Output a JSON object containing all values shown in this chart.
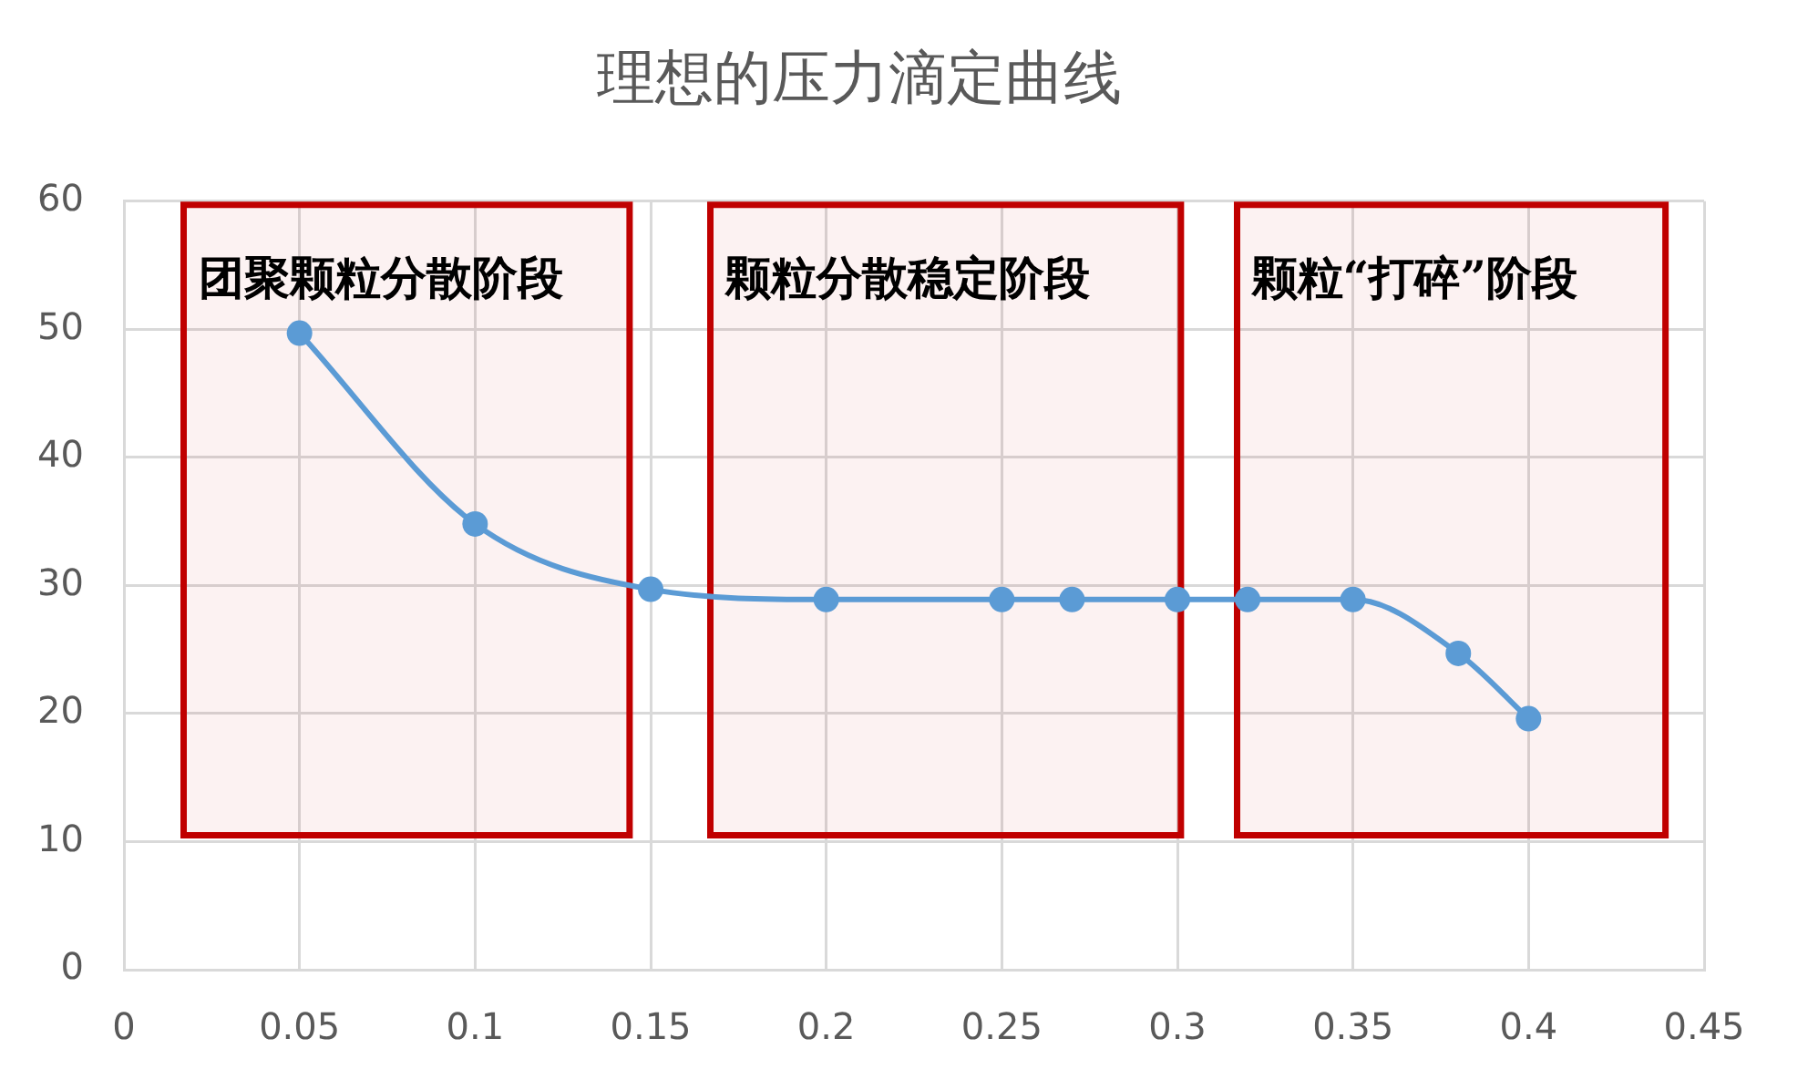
{
  "chart_data": {
    "type": "line",
    "title": "理想的压力滴定曲线",
    "x": [
      0.05,
      0.1,
      0.15,
      0.2,
      0.25,
      0.27,
      0.3,
      0.32,
      0.35,
      0.38,
      0.4
    ],
    "series": [
      {
        "color": "#5b9bd5",
        "values": [
          49.7,
          34.8,
          29.7,
          28.9,
          28.9,
          28.9,
          28.9,
          28.9,
          28.9,
          24.7,
          19.6
        ]
      }
    ],
    "xlim": [
      0,
      0.45
    ],
    "xticks": [
      0,
      0.05,
      0.1,
      0.15,
      0.2,
      0.25,
      0.3,
      0.35,
      0.4,
      0.45
    ],
    "ylim": [
      0,
      60
    ],
    "yticks": [
      0,
      10,
      20,
      30,
      40,
      50,
      60
    ],
    "grid": true,
    "marker": "circle",
    "line_style": "solid",
    "bands": [
      {
        "axis": "x",
        "from": 0.017,
        "to": 0.144,
        "label": "团聚颗粒分散阶段",
        "color": "#c00000"
      },
      {
        "axis": "x",
        "from": 0.167,
        "to": 0.301,
        "label": "颗粒分散稳定阶段",
        "color": "#c00000"
      },
      {
        "axis": "x",
        "from": 0.317,
        "to": 0.439,
        "label": "颗粒“打碎”阶段",
        "color": "#c00000"
      }
    ]
  }
}
